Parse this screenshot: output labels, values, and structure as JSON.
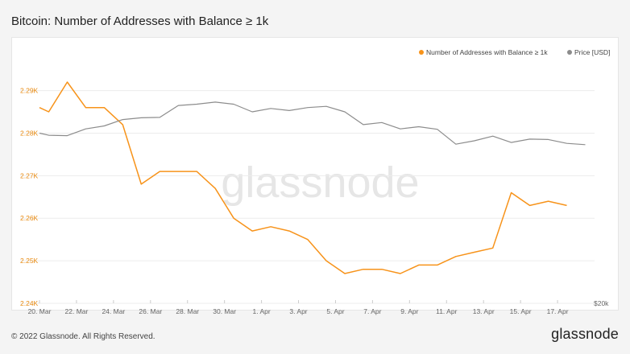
{
  "title": "Bitcoin: Number of Addresses with Balance ≥ 1k",
  "footer": {
    "copyright": "© 2022 Glassnode. All Rights Reserved.",
    "brand": "glassnode"
  },
  "watermark": "glassnode",
  "colors": {
    "addresses": "#f7931a",
    "price": "#8c8c8c",
    "grid": "#ececec",
    "axis_text": "#666666",
    "left_axis_text": "#e8890f"
  },
  "chart_data": {
    "type": "line",
    "title": "Bitcoin: Number of Addresses with Balance ≥ 1k",
    "x_tick_labels": [
      "20. Mar",
      "22. Mar",
      "24. Mar",
      "26. Mar",
      "28. Mar",
      "30. Mar",
      "1. Apr",
      "3. Apr",
      "5. Apr",
      "7. Apr",
      "9. Apr",
      "11. Apr",
      "13. Apr",
      "15. Apr",
      "17. Apr"
    ],
    "y_left": {
      "ticks": [
        2240,
        2250,
        2260,
        2270,
        2280,
        2290
      ],
      "tick_labels": [
        "2.24K",
        "2.25K",
        "2.26K",
        "2.27K",
        "2.28K",
        "2.29K"
      ],
      "range": [
        2240,
        2299
      ]
    },
    "y_right": {
      "tick_labels": [
        "$20k"
      ]
    },
    "legend_position": "top-right",
    "grid": true,
    "series": [
      {
        "name": "Number of Addresses with Balance ≥ 1k",
        "axis": "left",
        "x": [
          0,
          0.5,
          1.5,
          2.5,
          3.5,
          4.5,
          5.5,
          6.5,
          7.5,
          8.5,
          9.5,
          10.5,
          11.5,
          12.5,
          13.5,
          14.5,
          15.5,
          16.5,
          17.5,
          18.5,
          19.5,
          20.5,
          21.5,
          22.5,
          23.5,
          24.5,
          25.5,
          26.5,
          27.5,
          28.5
        ],
        "values": [
          2286,
          2285,
          2292,
          2286,
          2286,
          2282,
          2268,
          2271,
          2271,
          2271,
          2267,
          2260,
          2257,
          2258,
          2257,
          2255,
          2250,
          2247,
          2248,
          2248,
          2247,
          2249,
          2249,
          2251,
          2252,
          2253,
          2266,
          2263,
          2264,
          2263
        ]
      },
      {
        "name": "Price [USD]",
        "axis": "left",
        "x": [
          0,
          0.5,
          1.5,
          2.5,
          3.5,
          4.5,
          5.5,
          6.5,
          7.5,
          8.5,
          9.5,
          10.5,
          11.5,
          12.5,
          13.5,
          14.5,
          15.5,
          16.5,
          17.5,
          18.5,
          19.5,
          20.5,
          21.5,
          22.5,
          23.5,
          24.5,
          25.5,
          26.5,
          27.5,
          28.5,
          29.5
        ],
        "values": [
          2280,
          2279.5,
          2279.4,
          2281,
          2281.7,
          2283.2,
          2283.6,
          2283.7,
          2286.5,
          2286.8,
          2287.3,
          2286.8,
          2285,
          2285.8,
          2285.3,
          2286,
          2286.3,
          2285,
          2282,
          2282.5,
          2281,
          2281.5,
          2280.9,
          2277.4,
          2278.2,
          2279.3,
          2277.8,
          2278.6,
          2278.5,
          2277.6,
          2277.3
        ]
      }
    ]
  }
}
